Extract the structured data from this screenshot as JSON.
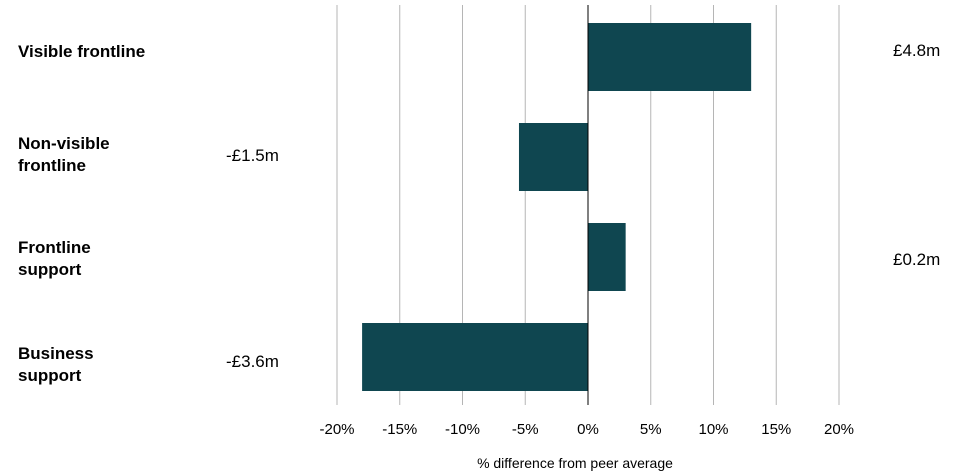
{
  "chart_data": {
    "type": "bar",
    "orientation": "horizontal",
    "categories": [
      "Visible frontline",
      "Non-visible frontline",
      "Frontline support",
      "Business support"
    ],
    "values": [
      13,
      -5.5,
      3,
      -18
    ],
    "value_labels": [
      "£4.8m",
      "-£1.5m",
      "£0.2m",
      "-£3.6m"
    ],
    "xlabel": "% difference from peer average",
    "ylabel": "",
    "xlim": [
      -20,
      20
    ],
    "ticks": [
      "-20%",
      "-15%",
      "-10%",
      "-5%",
      "0%",
      "5%",
      "10%",
      "15%",
      "20%"
    ],
    "grid": true,
    "bar_color": "#0f4650"
  }
}
